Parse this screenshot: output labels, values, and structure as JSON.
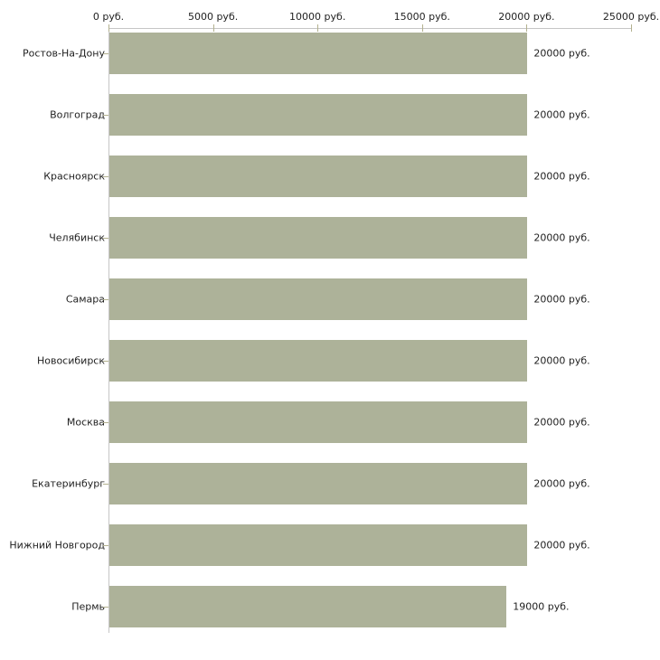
{
  "chart_data": {
    "type": "bar",
    "orientation": "horizontal",
    "title": "",
    "xlabel": "",
    "ylabel": "",
    "categories": [
      "Ростов-На-Дону",
      "Волгоград",
      "Красноярск",
      "Челябинск",
      "Самара",
      "Новосибирск",
      "Москва",
      "Екатеринбург",
      "Нижний Новгород",
      "Пермь"
    ],
    "values": [
      20000,
      20000,
      20000,
      20000,
      20000,
      20000,
      20000,
      20000,
      20000,
      19000
    ],
    "value_labels": [
      "20000 руб.",
      "20000 руб.",
      "20000 руб.",
      "20000 руб.",
      "20000 руб.",
      "20000 руб.",
      "20000 руб.",
      "20000 руб.",
      "20000 руб.",
      "19000 руб."
    ],
    "x_axis": {
      "position": "top",
      "xlim": [
        0,
        25000
      ],
      "ticks": [
        0,
        5000,
        10000,
        15000,
        20000,
        25000
      ],
      "tick_labels": [
        "0 руб.",
        "5000 руб.",
        "10000 руб.",
        "15000 руб.",
        "20000 руб.",
        "25000 руб."
      ]
    },
    "legend": "none",
    "grid": false,
    "colors": {
      "bar": "#adb299",
      "axis_line": "#c6c6c6",
      "tick_mark": "#b3b18f",
      "text": "#1f1f1f",
      "background": "#ffffff"
    }
  }
}
